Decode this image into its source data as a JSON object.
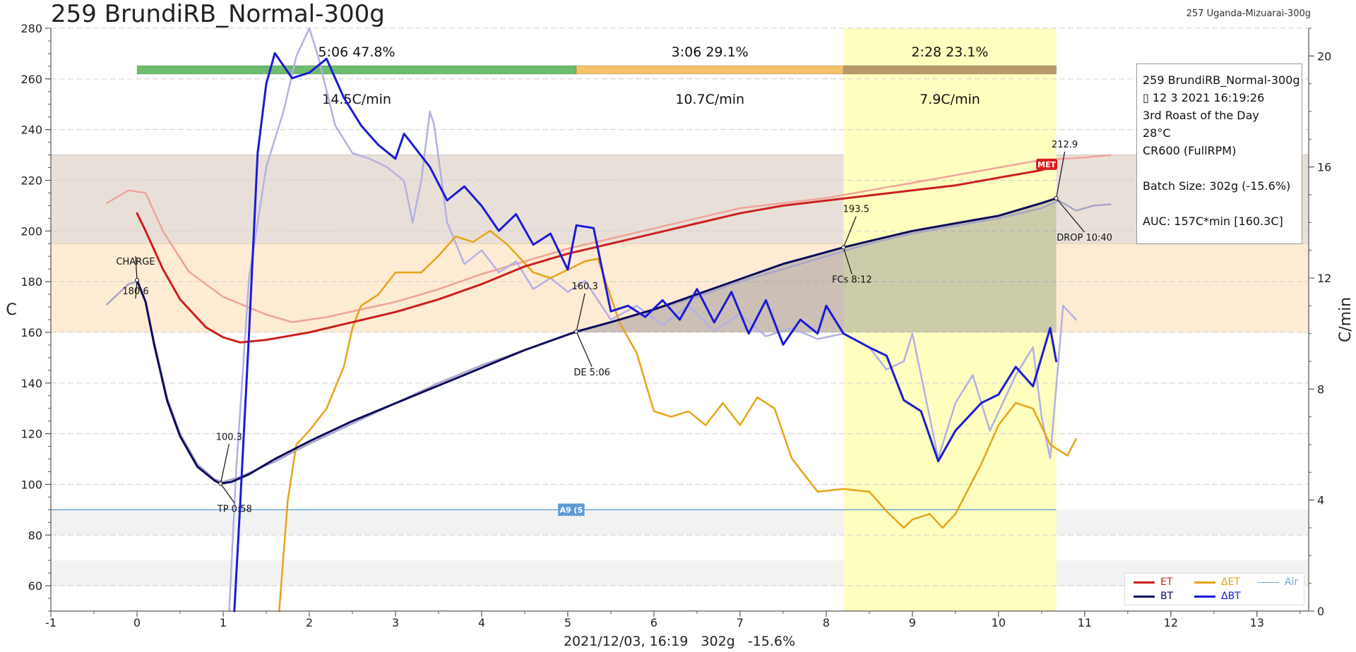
{
  "header": {
    "title": "259 BrundiRB_Normal-300g",
    "background_profile": "257 Uganda-Mizuarai-300g"
  },
  "info_box": {
    "lines": [
      "259 BrundiRB_Normal-300g",
      "▯ 12 3 2021 16:19:26",
      "3rd Roast of the Day",
      "28°C",
      "CR600 (FullRPM)"
    ],
    "batch": "Batch Size: 302g (-15.6%)",
    "auc": "AUC: 157C*min [160.3C]"
  },
  "legend": [
    {
      "label": "ET",
      "color": "#cc1f1f"
    },
    {
      "label": "ΔET",
      "color": "#e8a317"
    },
    {
      "label": "Air",
      "color": "#6fa8dc"
    },
    {
      "label": "BT",
      "color": "#0a0a5c"
    },
    {
      "label": "ΔBT",
      "color": "#1a1ad6"
    }
  ],
  "chart_data": {
    "type": "line",
    "xlabel": "2021/12/03, 16:19   302g   -15.6%",
    "ylabel": "C",
    "y2label": "C/min",
    "xlim": [
      -1,
      13.6
    ],
    "ylim": [
      50,
      280
    ],
    "y2lim": [
      0,
      21
    ],
    "x_ticks": [
      -1,
      0,
      1,
      2,
      3,
      4,
      5,
      6,
      7,
      8,
      9,
      10,
      11,
      12,
      13
    ],
    "y_ticks": [
      60,
      80,
      100,
      120,
      140,
      160,
      180,
      200,
      220,
      240,
      260,
      280
    ],
    "y2_ticks": [
      0,
      4,
      8,
      12,
      16,
      20
    ],
    "phases": [
      {
        "label": "5:06  47.8%",
        "ror": "14.5C/min",
        "start": 0,
        "end": 5.1,
        "color": "#6dbb6d"
      },
      {
        "label": "3:06  29.1%",
        "ror": "10.7C/min",
        "start": 5.1,
        "end": 8.2,
        "color": "#f5c26b"
      },
      {
        "label": "2:28  23.1%",
        "ror": "7.9C/min",
        "start": 8.2,
        "end": 10.67,
        "color": "#b89a6a"
      }
    ],
    "bands": [
      {
        "from": 195,
        "to": 230,
        "color": "#e8e0d8"
      },
      {
        "from": 160,
        "to": 195,
        "color": "#fdebd3"
      },
      {
        "from": 80,
        "to": 90,
        "color": "#f2f2f2"
      },
      {
        "from": 60,
        "to": 70,
        "color": "#f2f2f2"
      }
    ],
    "air_level": 90,
    "air_label": "A9 (S",
    "series": [
      {
        "name": "ET",
        "axis": "left",
        "color": "#cc1f1f",
        "points": [
          [
            0,
            207
          ],
          [
            0.1,
            200
          ],
          [
            0.3,
            185
          ],
          [
            0.5,
            173
          ],
          [
            0.8,
            162
          ],
          [
            1.0,
            158
          ],
          [
            1.2,
            156
          ],
          [
            1.5,
            157
          ],
          [
            2,
            160
          ],
          [
            2.5,
            164
          ],
          [
            3,
            168
          ],
          [
            3.5,
            173
          ],
          [
            4,
            179
          ],
          [
            4.5,
            186
          ],
          [
            5,
            191
          ],
          [
            5.5,
            195
          ],
          [
            6,
            199
          ],
          [
            6.5,
            203
          ],
          [
            7,
            207
          ],
          [
            7.5,
            210
          ],
          [
            8,
            212
          ],
          [
            8.5,
            214
          ],
          [
            9,
            216
          ],
          [
            9.5,
            218
          ],
          [
            10,
            221
          ],
          [
            10.5,
            224
          ],
          [
            10.67,
            226
          ]
        ]
      },
      {
        "name": "BT",
        "axis": "left",
        "color": "#0a0a5c",
        "points": [
          [
            0,
            180.6
          ],
          [
            0.1,
            172
          ],
          [
            0.2,
            155
          ],
          [
            0.35,
            133
          ],
          [
            0.5,
            119
          ],
          [
            0.7,
            107
          ],
          [
            0.9,
            101.5
          ],
          [
            0.97,
            100.3
          ],
          [
            1.1,
            101
          ],
          [
            1.3,
            104
          ],
          [
            1.6,
            110
          ],
          [
            2,
            117
          ],
          [
            2.5,
            125
          ],
          [
            3,
            132
          ],
          [
            3.5,
            139
          ],
          [
            4,
            146
          ],
          [
            4.5,
            153
          ],
          [
            5.1,
            160.3
          ],
          [
            5.5,
            164
          ],
          [
            6,
            169
          ],
          [
            6.5,
            175
          ],
          [
            7,
            181
          ],
          [
            7.5,
            187
          ],
          [
            8.2,
            193.5
          ],
          [
            8.5,
            196
          ],
          [
            9,
            200
          ],
          [
            9.5,
            203
          ],
          [
            10,
            206
          ],
          [
            10.5,
            211
          ],
          [
            10.67,
            212.9
          ]
        ]
      },
      {
        "name": "ΔET",
        "axis": "right",
        "color": "#e8a317",
        "points": [
          [
            1.65,
            0
          ],
          [
            1.75,
            4
          ],
          [
            1.85,
            6
          ],
          [
            2.0,
            6.5
          ],
          [
            2.2,
            7.3
          ],
          [
            2.4,
            8.8
          ],
          [
            2.5,
            10.2
          ],
          [
            2.6,
            11
          ],
          [
            2.8,
            11.4
          ],
          [
            3.0,
            12.2
          ],
          [
            3.3,
            12.2
          ],
          [
            3.5,
            12.8
          ],
          [
            3.7,
            13.5
          ],
          [
            3.9,
            13.3
          ],
          [
            4.1,
            13.7
          ],
          [
            4.3,
            13.2
          ],
          [
            4.6,
            12.2
          ],
          [
            4.8,
            12.0
          ],
          [
            5.0,
            12.3
          ],
          [
            5.2,
            12.6
          ],
          [
            5.35,
            12.7
          ],
          [
            5.6,
            10.4
          ],
          [
            5.8,
            9.3
          ],
          [
            6.0,
            7.2
          ],
          [
            6.2,
            7.0
          ],
          [
            6.4,
            7.2
          ],
          [
            6.6,
            6.7
          ],
          [
            6.8,
            7.5
          ],
          [
            7.0,
            6.7
          ],
          [
            7.2,
            7.7
          ],
          [
            7.4,
            7.3
          ],
          [
            7.6,
            5.5
          ],
          [
            7.9,
            4.3
          ],
          [
            8.2,
            4.4
          ],
          [
            8.5,
            4.3
          ],
          [
            8.7,
            3.6
          ],
          [
            8.9,
            3.0
          ],
          [
            9.0,
            3.3
          ],
          [
            9.2,
            3.5
          ],
          [
            9.35,
            3.0
          ],
          [
            9.5,
            3.5
          ],
          [
            9.8,
            5.3
          ],
          [
            10.0,
            6.7
          ],
          [
            10.2,
            7.5
          ],
          [
            10.4,
            7.3
          ],
          [
            10.6,
            6.0
          ],
          [
            10.8,
            5.6
          ],
          [
            10.9,
            6.2
          ]
        ]
      },
      {
        "name": "ΔBT",
        "axis": "right",
        "color": "#1a1ad6",
        "points": [
          [
            1.13,
            0
          ],
          [
            1.2,
            4
          ],
          [
            1.3,
            10
          ],
          [
            1.4,
            16.5
          ],
          [
            1.5,
            19
          ],
          [
            1.6,
            20.1
          ],
          [
            1.8,
            19.2
          ],
          [
            2.0,
            19.4
          ],
          [
            2.2,
            19.9
          ],
          [
            2.4,
            18.5
          ],
          [
            2.6,
            17.5
          ],
          [
            2.8,
            16.8
          ],
          [
            3.0,
            16.3
          ],
          [
            3.1,
            17.2
          ],
          [
            3.2,
            16.8
          ],
          [
            3.4,
            16.0
          ],
          [
            3.6,
            14.8
          ],
          [
            3.8,
            15.3
          ],
          [
            4.0,
            14.6
          ],
          [
            4.2,
            13.7
          ],
          [
            4.4,
            14.3
          ],
          [
            4.6,
            13.2
          ],
          [
            4.8,
            13.6
          ],
          [
            5.0,
            12.3
          ],
          [
            5.1,
            13.9
          ],
          [
            5.3,
            13.8
          ],
          [
            5.5,
            10.8
          ],
          [
            5.7,
            11.0
          ],
          [
            5.9,
            10.6
          ],
          [
            6.1,
            11.2
          ],
          [
            6.3,
            10.5
          ],
          [
            6.5,
            11.6
          ],
          [
            6.7,
            10.4
          ],
          [
            6.9,
            11.5
          ],
          [
            7.1,
            10.0
          ],
          [
            7.3,
            11.2
          ],
          [
            7.5,
            9.6
          ],
          [
            7.7,
            10.5
          ],
          [
            7.9,
            10.0
          ],
          [
            8.0,
            11.0
          ],
          [
            8.2,
            10.0
          ],
          [
            8.5,
            9.5
          ],
          [
            8.7,
            9.2
          ],
          [
            8.9,
            7.6
          ],
          [
            9.1,
            7.2
          ],
          [
            9.3,
            5.4
          ],
          [
            9.5,
            6.5
          ],
          [
            9.8,
            7.5
          ],
          [
            10.0,
            7.8
          ],
          [
            10.2,
            8.8
          ],
          [
            10.4,
            8.1
          ],
          [
            10.6,
            10.2
          ],
          [
            10.67,
            9.0
          ]
        ]
      },
      {
        "name": "ET (background)",
        "axis": "left",
        "color": "#f0a39a",
        "points": [
          [
            -0.35,
            211
          ],
          [
            -0.1,
            216
          ],
          [
            0.1,
            215
          ],
          [
            0.3,
            200
          ],
          [
            0.6,
            184
          ],
          [
            1.0,
            174
          ],
          [
            1.5,
            167
          ],
          [
            1.8,
            164
          ],
          [
            2.2,
            166
          ],
          [
            2.6,
            169
          ],
          [
            3,
            172
          ],
          [
            3.5,
            177
          ],
          [
            4,
            183
          ],
          [
            4.5,
            188
          ],
          [
            5,
            193
          ],
          [
            5.5,
            197
          ],
          [
            6,
            201
          ],
          [
            6.5,
            205
          ],
          [
            7,
            209
          ],
          [
            7.5,
            211
          ],
          [
            8,
            213
          ],
          [
            8.5,
            216
          ],
          [
            9,
            219
          ],
          [
            9.5,
            222
          ],
          [
            10,
            225
          ],
          [
            10.5,
            228
          ],
          [
            11,
            229
          ],
          [
            11.3,
            230
          ]
        ]
      },
      {
        "name": "BT (background)",
        "axis": "left",
        "color": "#a9a5c5",
        "points": [
          [
            -0.35,
            171
          ],
          [
            -0.1,
            179
          ],
          [
            0,
            180
          ],
          [
            0.1,
            172
          ],
          [
            0.2,
            156
          ],
          [
            0.35,
            134
          ],
          [
            0.5,
            120
          ],
          [
            0.7,
            108
          ],
          [
            0.9,
            102
          ],
          [
            1.0,
            101
          ],
          [
            1.2,
            103
          ],
          [
            1.6,
            109
          ],
          [
            2,
            116
          ],
          [
            2.5,
            124
          ],
          [
            3,
            132
          ],
          [
            3.5,
            140
          ],
          [
            4,
            147
          ],
          [
            4.5,
            153
          ],
          [
            5,
            159
          ],
          [
            5.5,
            164
          ],
          [
            6,
            169
          ],
          [
            6.5,
            174
          ],
          [
            7,
            180
          ],
          [
            7.5,
            185
          ],
          [
            8,
            190
          ],
          [
            8.5,
            195
          ],
          [
            9,
            199
          ],
          [
            9.5,
            202
          ],
          [
            10,
            205
          ],
          [
            10.5,
            209
          ],
          [
            10.7,
            212
          ],
          [
            10.9,
            208
          ],
          [
            11.1,
            210
          ],
          [
            11.3,
            210.5
          ]
        ]
      },
      {
        "name": "ΔBT (background)",
        "axis": "right",
        "color": "#b3b0e6",
        "points": [
          [
            1.07,
            0
          ],
          [
            1.15,
            5
          ],
          [
            1.3,
            12
          ],
          [
            1.5,
            16
          ],
          [
            1.7,
            18
          ],
          [
            1.85,
            20
          ],
          [
            2.0,
            21.5
          ],
          [
            2.1,
            20
          ],
          [
            2.3,
            17.5
          ],
          [
            2.5,
            16.5
          ],
          [
            2.7,
            16.3
          ],
          [
            2.9,
            16.0
          ],
          [
            3.1,
            15.5
          ],
          [
            3.2,
            14.0
          ],
          [
            3.3,
            15.5
          ],
          [
            3.4,
            18
          ],
          [
            3.45,
            17.5
          ],
          [
            3.6,
            14
          ],
          [
            3.8,
            12.5
          ],
          [
            4.0,
            13.0
          ],
          [
            4.2,
            12.2
          ],
          [
            4.4,
            12.6
          ],
          [
            4.6,
            11.6
          ],
          [
            4.8,
            12.0
          ],
          [
            5.0,
            11.5
          ],
          [
            5.2,
            11.9
          ],
          [
            5.5,
            10.5
          ],
          [
            5.8,
            11.0
          ],
          [
            6.1,
            10.3
          ],
          [
            6.4,
            11.0
          ],
          [
            6.7,
            10.1
          ],
          [
            7.0,
            10.7
          ],
          [
            7.3,
            9.9
          ],
          [
            7.6,
            10.2
          ],
          [
            7.9,
            9.8
          ],
          [
            8.2,
            10.0
          ],
          [
            8.5,
            9.5
          ],
          [
            8.7,
            8.7
          ],
          [
            8.9,
            9.0
          ],
          [
            9.0,
            10.0
          ],
          [
            9.2,
            7.0
          ],
          [
            9.3,
            5.5
          ],
          [
            9.5,
            7.5
          ],
          [
            9.7,
            8.5
          ],
          [
            9.9,
            6.5
          ],
          [
            10.2,
            8.5
          ],
          [
            10.4,
            9.5
          ],
          [
            10.5,
            7.0
          ],
          [
            10.6,
            5.5
          ],
          [
            10.75,
            11.0
          ],
          [
            10.9,
            10.5
          ]
        ]
      }
    ],
    "events": [
      {
        "label": "CHARGE",
        "x": 0,
        "y": 180.6,
        "value": "180.6"
      },
      {
        "label": "TP 0:58",
        "x": 0.97,
        "y": 100.3,
        "value": "100.3"
      },
      {
        "label": "DE 5:06",
        "x": 5.1,
        "y": 160.3,
        "value": "160.3"
      },
      {
        "label": "FCs 8:12",
        "x": 8.2,
        "y": 193.5,
        "value": "193.5"
      },
      {
        "label": "DROP 10:40",
        "x": 10.67,
        "y": 212.9,
        "value": "212.9"
      }
    ],
    "met_label": "MET",
    "met_point": [
      10.6,
      226
    ]
  }
}
